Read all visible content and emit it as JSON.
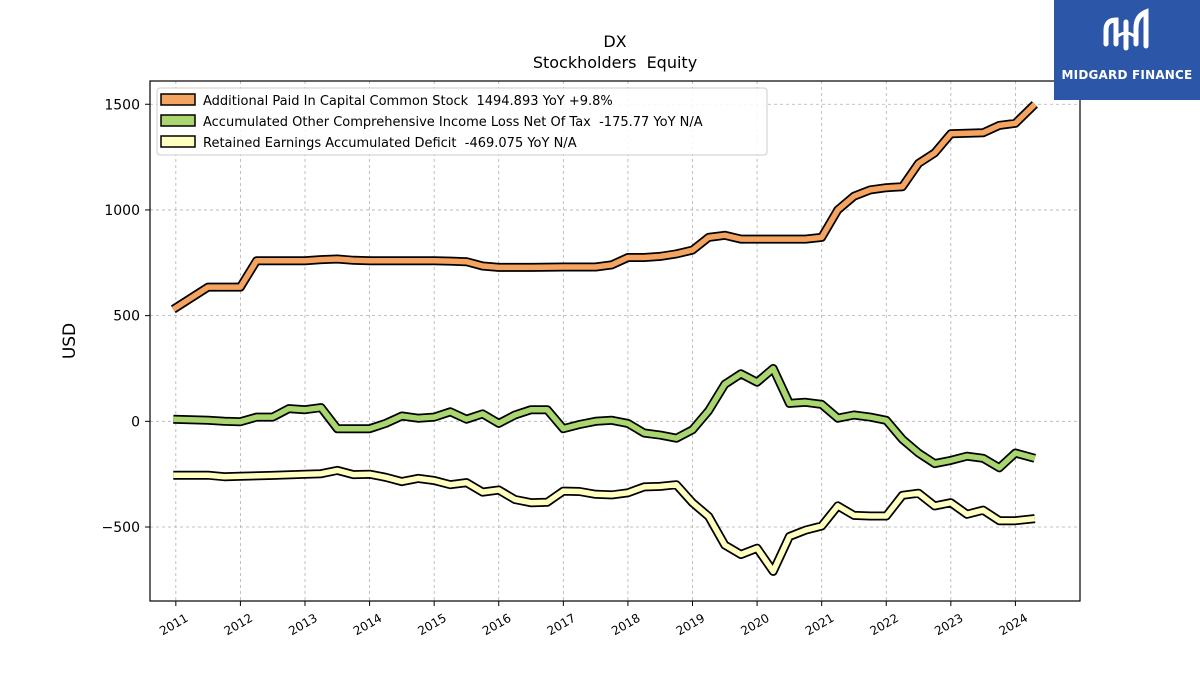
{
  "chart_data": {
    "type": "line",
    "title": "DX",
    "subtitle": "Stockholders  Equity",
    "xlabel": "",
    "ylabel": "USD",
    "xlim": [
      2010.6,
      2025.0
    ],
    "ylim": [
      -850,
      1610
    ],
    "yticks": [
      -500,
      0,
      500,
      1000,
      1500
    ],
    "ytick_labels": [
      "−500",
      "0",
      "500",
      "1000",
      "1500"
    ],
    "xticks": [
      2011,
      2012,
      2013,
      2014,
      2015,
      2016,
      2017,
      2018,
      2019,
      2020,
      2021,
      2022,
      2023,
      2024
    ],
    "xtick_labels": [
      "2011",
      "2012",
      "2013",
      "2014",
      "2015",
      "2016",
      "2017",
      "2018",
      "2019",
      "2020",
      "2021",
      "2022",
      "2023",
      "2024"
    ],
    "grid": true,
    "legend_position": "top-left",
    "series": [
      {
        "name": "Additional Paid In Capital Common Stock  1494.893 YoY +9.8%",
        "color": "#f4a460",
        "x": [
          2010.96,
          2011.5,
          2012.0,
          2012.25,
          2012.5,
          2013.0,
          2013.25,
          2013.5,
          2013.75,
          2014.0,
          2014.5,
          2015.0,
          2015.25,
          2015.5,
          2015.75,
          2016.0,
          2016.5,
          2017.0,
          2017.5,
          2017.75,
          2018.0,
          2018.25,
          2018.5,
          2018.75,
          2019.0,
          2019.25,
          2019.5,
          2019.75,
          2020.0,
          2020.25,
          2020.5,
          2020.75,
          2021.0,
          2021.25,
          2021.5,
          2021.75,
          2022.0,
          2022.25,
          2022.5,
          2022.75,
          2023.0,
          2023.5,
          2023.75,
          2024.0,
          2024.3
        ],
        "values": [
          530,
          635,
          635,
          760,
          760,
          760,
          765,
          768,
          762,
          760,
          760,
          760,
          758,
          755,
          735,
          728,
          728,
          730,
          730,
          740,
          775,
          775,
          780,
          792,
          810,
          870,
          880,
          862,
          862,
          862,
          862,
          862,
          870,
          1000,
          1065,
          1095,
          1105,
          1110,
          1220,
          1270,
          1360,
          1365,
          1400,
          1410,
          1500
        ]
      },
      {
        "name": "Accumulated Other Comprehensive Income Loss Net Of Tax  -175.77 YoY N/A",
        "color": "#a9d66e",
        "x": [
          2010.96,
          2011.5,
          2011.75,
          2012.0,
          2012.25,
          2012.5,
          2012.75,
          2013.0,
          2013.25,
          2013.5,
          2013.75,
          2014.0,
          2014.25,
          2014.5,
          2014.75,
          2015.0,
          2015.25,
          2015.5,
          2015.75,
          2016.0,
          2016.25,
          2016.5,
          2016.75,
          2017.0,
          2017.25,
          2017.5,
          2017.75,
          2018.0,
          2018.25,
          2018.5,
          2018.75,
          2019.0,
          2019.25,
          2019.5,
          2019.75,
          2020.0,
          2020.25,
          2020.5,
          2020.75,
          2021.0,
          2021.25,
          2021.5,
          2021.75,
          2022.0,
          2022.25,
          2022.5,
          2022.75,
          2023.0,
          2023.25,
          2023.5,
          2023.75,
          2024.0,
          2024.3
        ],
        "values": [
          10,
          5,
          0,
          -2,
          20,
          20,
          60,
          55,
          65,
          -35,
          -35,
          -35,
          -10,
          25,
          15,
          20,
          45,
          10,
          35,
          -10,
          30,
          55,
          55,
          -35,
          -15,
          0,
          5,
          -10,
          -55,
          -65,
          -80,
          -40,
          50,
          175,
          225,
          185,
          250,
          85,
          90,
          80,
          15,
          30,
          20,
          5,
          -85,
          -150,
          -200,
          -185,
          -165,
          -175,
          -220,
          -150,
          -175
        ]
      },
      {
        "name": "Retained Earnings Accumulated Deficit  -469.075 YoY N/A",
        "color": "#ffffc0",
        "x": [
          2010.96,
          2011.5,
          2011.75,
          2012.0,
          2012.5,
          2013.0,
          2013.25,
          2013.5,
          2013.75,
          2014.0,
          2014.25,
          2014.5,
          2014.75,
          2015.0,
          2015.25,
          2015.5,
          2015.75,
          2016.0,
          2016.25,
          2016.5,
          2016.75,
          2017.0,
          2017.25,
          2017.5,
          2017.75,
          2018.0,
          2018.25,
          2018.5,
          2018.75,
          2019.0,
          2019.25,
          2019.5,
          2019.75,
          2020.0,
          2020.25,
          2020.5,
          2020.75,
          2021.0,
          2021.25,
          2021.5,
          2021.75,
          2022.0,
          2022.25,
          2022.5,
          2022.75,
          2023.0,
          2023.25,
          2023.5,
          2023.75,
          2024.0,
          2024.3
        ],
        "values": [
          -255,
          -255,
          -262,
          -260,
          -256,
          -250,
          -248,
          -232,
          -252,
          -250,
          -265,
          -285,
          -270,
          -280,
          -300,
          -290,
          -335,
          -325,
          -370,
          -385,
          -383,
          -330,
          -332,
          -345,
          -348,
          -338,
          -310,
          -308,
          -300,
          -385,
          -450,
          -585,
          -630,
          -600,
          -710,
          -545,
          -515,
          -495,
          -400,
          -445,
          -448,
          -448,
          -350,
          -340,
          -400,
          -385,
          -440,
          -420,
          -470,
          -470,
          -460
        ]
      }
    ]
  },
  "logo": {
    "text": "MIDGARD FINANCE",
    "color": "#2c56a8"
  }
}
